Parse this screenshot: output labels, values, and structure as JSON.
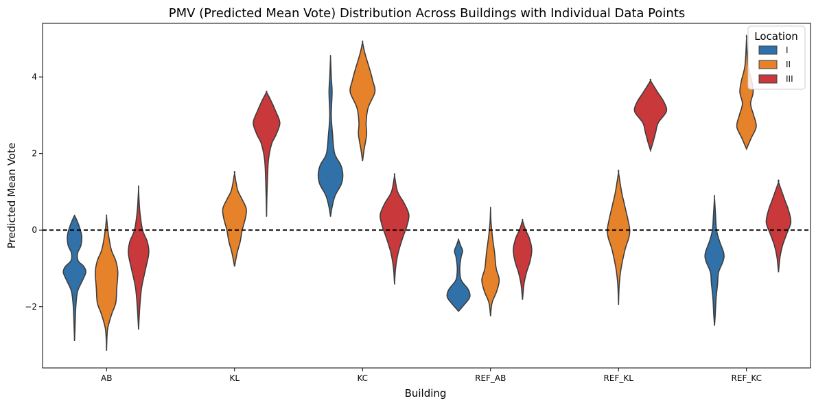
{
  "chart_data": {
    "type": "violin",
    "title": "PMV (Predicted Mean Vote) Distribution Across Buildings with Individual Data Points",
    "xlabel": "Building",
    "ylabel": "Predicted Mean Vote",
    "categories": [
      "AB",
      "KL",
      "KC",
      "REF_AB",
      "REF_KL",
      "REF_KC"
    ],
    "ylim": [
      -3.6,
      5.4
    ],
    "yticks": [
      -2,
      0,
      2,
      4
    ],
    "ytick_labels": [
      "−2",
      "0",
      "2",
      "4"
    ],
    "reference_line": {
      "y": 0,
      "style": "dashed",
      "color": "#000000"
    },
    "legend": {
      "title": "Location",
      "placement": "top-right"
    },
    "series": [
      {
        "name": "I",
        "color": "#2f71a8",
        "violins": [
          {
            "category": "AB",
            "profile": [
              [
                -2.9,
                0.0
              ],
              [
                -2.5,
                0.02
              ],
              [
                -2.0,
                0.05
              ],
              [
                -1.6,
                0.12
              ],
              [
                -1.3,
                0.32
              ],
              [
                -1.1,
                0.44
              ],
              [
                -0.95,
                0.36
              ],
              [
                -0.8,
                0.14
              ],
              [
                -0.6,
                0.12
              ],
              [
                -0.4,
                0.25
              ],
              [
                -0.15,
                0.28
              ],
              [
                0.1,
                0.18
              ],
              [
                0.3,
                0.06
              ],
              [
                0.38,
                0.0
              ]
            ]
          },
          {
            "category": "KL",
            "profile": []
          },
          {
            "category": "KC",
            "profile": [
              [
                0.35,
                0.0
              ],
              [
                0.6,
                0.06
              ],
              [
                0.9,
                0.18
              ],
              [
                1.2,
                0.42
              ],
              [
                1.45,
                0.48
              ],
              [
                1.7,
                0.4
              ],
              [
                2.0,
                0.16
              ],
              [
                2.5,
                0.08
              ],
              [
                3.0,
                0.03
              ],
              [
                3.6,
                0.06
              ],
              [
                4.0,
                0.03
              ],
              [
                4.5,
                0.0
              ]
            ]
          },
          {
            "category": "REF_AB",
            "profile": [
              [
                -2.12,
                0.0
              ],
              [
                -1.95,
                0.22
              ],
              [
                -1.75,
                0.44
              ],
              [
                -1.55,
                0.38
              ],
              [
                -1.3,
                0.1
              ],
              [
                -1.0,
                0.05
              ],
              [
                -0.7,
                0.1
              ],
              [
                -0.55,
                0.16
              ],
              [
                -0.4,
                0.08
              ],
              [
                -0.25,
                0.0
              ]
            ]
          },
          {
            "category": "REF_KL",
            "profile": []
          },
          {
            "category": "REF_KC",
            "profile": [
              [
                -2.5,
                0.0
              ],
              [
                -2.2,
                0.03
              ],
              [
                -1.8,
                0.06
              ],
              [
                -1.4,
                0.12
              ],
              [
                -1.1,
                0.16
              ],
              [
                -0.8,
                0.34
              ],
              [
                -0.6,
                0.36
              ],
              [
                -0.3,
                0.2
              ],
              [
                0.0,
                0.08
              ],
              [
                0.4,
                0.04
              ],
              [
                0.85,
                0.0
              ]
            ]
          }
        ]
      },
      {
        "name": "II",
        "color": "#e6822a",
        "violins": [
          {
            "category": "AB",
            "profile": [
              [
                -3.15,
                0.0
              ],
              [
                -2.6,
                0.04
              ],
              [
                -2.2,
                0.2
              ],
              [
                -1.9,
                0.36
              ],
              [
                -1.5,
                0.4
              ],
              [
                -1.1,
                0.44
              ],
              [
                -0.8,
                0.36
              ],
              [
                -0.5,
                0.18
              ],
              [
                0.0,
                0.05
              ],
              [
                0.35,
                0.0
              ]
            ]
          },
          {
            "category": "KL",
            "profile": [
              [
                -0.95,
                0.0
              ],
              [
                -0.6,
                0.1
              ],
              [
                -0.3,
                0.22
              ],
              [
                0.0,
                0.3
              ],
              [
                0.3,
                0.42
              ],
              [
                0.55,
                0.46
              ],
              [
                0.8,
                0.3
              ],
              [
                1.05,
                0.12
              ],
              [
                1.48,
                0.0
              ]
            ]
          },
          {
            "category": "KC",
            "profile": [
              [
                1.8,
                0.0
              ],
              [
                2.1,
                0.06
              ],
              [
                2.5,
                0.16
              ],
              [
                2.8,
                0.14
              ],
              [
                3.2,
                0.22
              ],
              [
                3.6,
                0.48
              ],
              [
                3.9,
                0.4
              ],
              [
                4.2,
                0.28
              ],
              [
                4.6,
                0.1
              ],
              [
                4.9,
                0.0
              ]
            ]
          },
          {
            "category": "REF_AB",
            "profile": [
              [
                -2.25,
                0.0
              ],
              [
                -1.9,
                0.06
              ],
              [
                -1.6,
                0.24
              ],
              [
                -1.3,
                0.34
              ],
              [
                -1.0,
                0.22
              ],
              [
                -0.6,
                0.16
              ],
              [
                -0.2,
                0.08
              ],
              [
                0.2,
                0.02
              ],
              [
                0.55,
                0.0
              ]
            ]
          },
          {
            "category": "REF_KL",
            "profile": [
              [
                -1.95,
                0.0
              ],
              [
                -1.4,
                0.03
              ],
              [
                -1.0,
                0.1
              ],
              [
                -0.5,
                0.26
              ],
              [
                -0.2,
                0.4
              ],
              [
                0.0,
                0.44
              ],
              [
                0.3,
                0.36
              ],
              [
                0.7,
                0.22
              ],
              [
                1.0,
                0.12
              ],
              [
                1.5,
                0.0
              ]
            ]
          },
          {
            "category": "REF_KC",
            "profile": [
              [
                2.12,
                0.0
              ],
              [
                2.4,
                0.18
              ],
              [
                2.7,
                0.38
              ],
              [
                3.0,
                0.28
              ],
              [
                3.3,
                0.16
              ],
              [
                3.6,
                0.26
              ],
              [
                3.9,
                0.2
              ],
              [
                4.3,
                0.06
              ],
              [
                5.0,
                0.0
              ]
            ]
          }
        ]
      },
      {
        "name": "III",
        "color": "#c9383a",
        "violins": [
          {
            "category": "AB",
            "profile": [
              [
                -2.6,
                0.0
              ],
              [
                -2.0,
                0.05
              ],
              [
                -1.5,
                0.12
              ],
              [
                -1.0,
                0.28
              ],
              [
                -0.6,
                0.4
              ],
              [
                -0.3,
                0.34
              ],
              [
                0.0,
                0.16
              ],
              [
                0.5,
                0.05
              ],
              [
                1.08,
                0.0
              ]
            ]
          },
          {
            "category": "KL",
            "profile": [
              [
                0.35,
                0.0
              ],
              [
                1.0,
                0.02
              ],
              [
                1.8,
                0.07
              ],
              [
                2.25,
                0.2
              ],
              [
                2.5,
                0.38
              ],
              [
                2.8,
                0.52
              ],
              [
                3.1,
                0.36
              ],
              [
                3.4,
                0.16
              ],
              [
                3.6,
                0.0
              ]
            ]
          },
          {
            "category": "KC",
            "profile": [
              [
                -1.42,
                0.0
              ],
              [
                -1.0,
                0.04
              ],
              [
                -0.6,
                0.14
              ],
              [
                -0.2,
                0.32
              ],
              [
                0.1,
                0.48
              ],
              [
                0.4,
                0.56
              ],
              [
                0.7,
                0.38
              ],
              [
                1.0,
                0.12
              ],
              [
                1.42,
                0.0
              ]
            ]
          },
          {
            "category": "REF_AB",
            "profile": [
              [
                -1.82,
                0.0
              ],
              [
                -1.4,
                0.06
              ],
              [
                -1.1,
                0.16
              ],
              [
                -0.8,
                0.3
              ],
              [
                -0.5,
                0.36
              ],
              [
                -0.2,
                0.26
              ],
              [
                0.0,
                0.12
              ],
              [
                0.25,
                0.0
              ]
            ]
          },
          {
            "category": "REF_KL",
            "profile": [
              [
                2.08,
                0.0
              ],
              [
                2.3,
                0.1
              ],
              [
                2.55,
                0.2
              ],
              [
                2.8,
                0.3
              ],
              [
                3.1,
                0.62
              ],
              [
                3.35,
                0.52
              ],
              [
                3.6,
                0.28
              ],
              [
                3.9,
                0.0
              ]
            ]
          },
          {
            "category": "REF_KC",
            "profile": [
              [
                -1.1,
                0.0
              ],
              [
                -0.7,
                0.06
              ],
              [
                -0.4,
                0.16
              ],
              [
                -0.1,
                0.32
              ],
              [
                0.2,
                0.48
              ],
              [
                0.5,
                0.4
              ],
              [
                0.8,
                0.24
              ],
              [
                1.25,
                0.0
              ]
            ]
          }
        ]
      }
    ]
  }
}
